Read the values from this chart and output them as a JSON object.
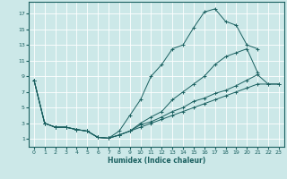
{
  "xlabel": "Humidex (Indice chaleur)",
  "background_color": "#cce8e8",
  "line_color": "#1a6060",
  "grid_color": "#ffffff",
  "xlim": [
    -0.5,
    23.5
  ],
  "ylim": [
    0,
    18.5
  ],
  "xticks": [
    0,
    1,
    2,
    3,
    4,
    5,
    6,
    7,
    8,
    9,
    10,
    11,
    12,
    13,
    14,
    15,
    16,
    17,
    18,
    19,
    20,
    21,
    22,
    23
  ],
  "yticks": [
    1,
    3,
    5,
    7,
    9,
    11,
    13,
    15,
    17
  ],
  "lines": [
    {
      "x": [
        0,
        1,
        2,
        3,
        4,
        5,
        6,
        7,
        8,
        9,
        10,
        11,
        12,
        13,
        14,
        15,
        16,
        17,
        18,
        19,
        20,
        21
      ],
      "y": [
        8.5,
        3,
        2.5,
        2.5,
        2.2,
        2,
        1.2,
        1.1,
        2,
        4,
        6,
        9,
        10.5,
        12.5,
        13,
        15.2,
        17.2,
        17.6,
        16,
        15.5,
        13,
        12.5
      ]
    },
    {
      "x": [
        0,
        1,
        2,
        3,
        4,
        5,
        6,
        7,
        8,
        9,
        10,
        11,
        12,
        13,
        14,
        15,
        16,
        17,
        18,
        19,
        20,
        21
      ],
      "y": [
        8.5,
        3,
        2.5,
        2.5,
        2.2,
        2,
        1.2,
        1.1,
        1.5,
        2,
        3,
        3.8,
        4.5,
        6,
        7,
        8,
        9,
        10.5,
        11.5,
        12,
        12.5,
        9.5
      ]
    },
    {
      "x": [
        0,
        1,
        2,
        3,
        4,
        5,
        6,
        7,
        8,
        9,
        10,
        11,
        12,
        13,
        14,
        15,
        16,
        17,
        18,
        19,
        20,
        21,
        22,
        23
      ],
      "y": [
        8.5,
        3,
        2.5,
        2.5,
        2.2,
        2,
        1.2,
        1.1,
        1.5,
        2,
        2.5,
        3,
        3.5,
        4,
        4.5,
        5,
        5.5,
        6,
        6.5,
        7,
        7.5,
        8,
        8,
        8
      ]
    },
    {
      "x": [
        0,
        1,
        2,
        3,
        4,
        5,
        6,
        7,
        8,
        9,
        10,
        11,
        12,
        13,
        14,
        15,
        16,
        17,
        18,
        19,
        20,
        21,
        22,
        23
      ],
      "y": [
        8.5,
        3,
        2.5,
        2.5,
        2.2,
        2,
        1.2,
        1.1,
        1.5,
        2,
        2.8,
        3.2,
        3.8,
        4.5,
        5,
        5.8,
        6.2,
        6.8,
        7.2,
        7.8,
        8.5,
        9.2,
        8,
        8
      ]
    }
  ]
}
